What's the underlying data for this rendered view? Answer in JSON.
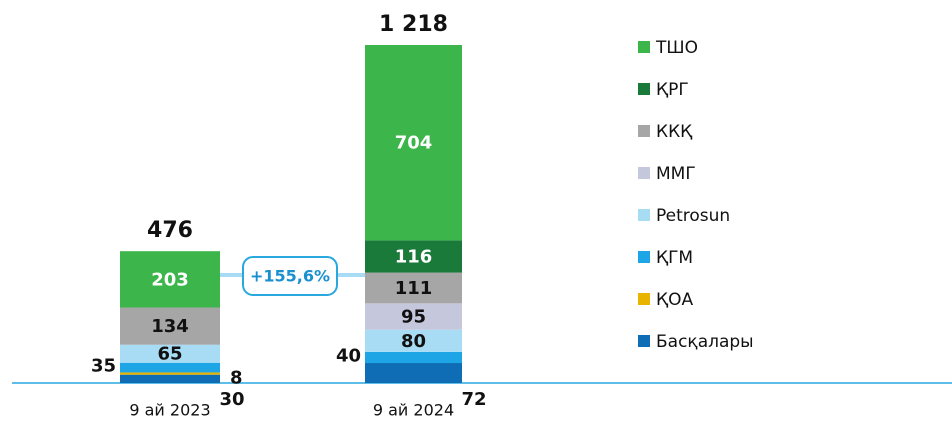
{
  "chart_data": {
    "type": "stacked_bar",
    "categories": [
      "9 ай 2023",
      "9 ай 2024"
    ],
    "series": [
      {
        "name": "Басқалары",
        "color": "#0f6db5",
        "values": [
          30,
          72
        ]
      },
      {
        "name": "ҚОА",
        "color": "#e8b400",
        "values": [
          8,
          null
        ]
      },
      {
        "name": "ҚГМ",
        "color": "#1ea5e6",
        "values": [
          35,
          40
        ]
      },
      {
        "name": "Petrosun",
        "color": "#a8dcf5",
        "values": [
          65,
          80
        ]
      },
      {
        "name": "ММГ",
        "color": "#c5c8dc",
        "values": [
          null,
          95
        ]
      },
      {
        "name": "ККҚ",
        "color": "#a6a6a6",
        "values": [
          134,
          111
        ]
      },
      {
        "name": "ҚРГ",
        "color": "#1a7a3a",
        "values": [
          null,
          116
        ]
      },
      {
        "name": "ТШО",
        "color": "#3cb54a",
        "values": [
          203,
          704
        ]
      }
    ],
    "totals": [
      476,
      1218
    ],
    "total_labels": [
      "476",
      "1 218"
    ],
    "annotation": "+155,6%"
  }
}
